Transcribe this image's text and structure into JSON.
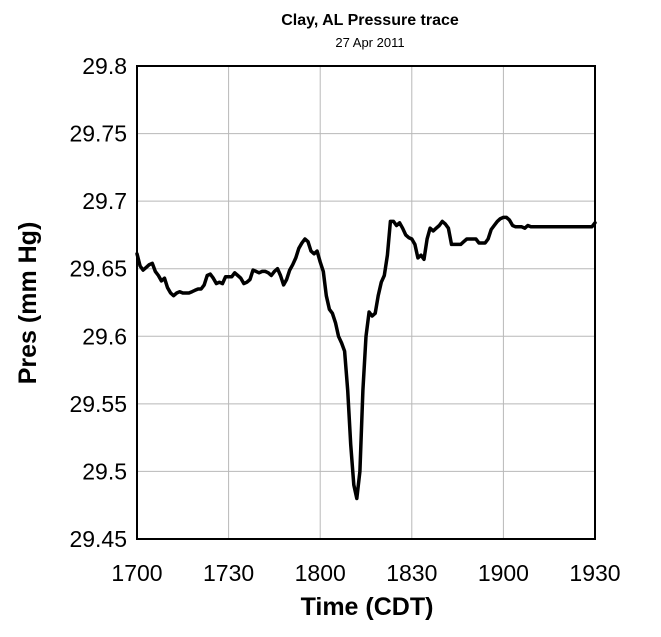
{
  "chart_data": {
    "type": "line",
    "title": "Clay, AL Pressure trace",
    "subtitle": "27 Apr 2011",
    "xlabel": "Time (CDT)",
    "ylabel": "Pres (mm Hg)",
    "x_ticks": [
      "1700",
      "1730",
      "1800",
      "1830",
      "1900",
      "1930"
    ],
    "y_ticks": [
      "29.8",
      "29.75",
      "29.7",
      "29.65",
      "29.6",
      "29.55",
      "29.5",
      "29.45"
    ],
    "xlim": [
      0,
      150
    ],
    "ylim": [
      29.45,
      29.8
    ],
    "grid": true,
    "x_unit_note": "minutes after 1700 CDT",
    "series": [
      {
        "color": "#000000",
        "x": [
          0,
          1,
          2,
          3,
          4,
          5,
          6,
          7,
          8,
          9,
          10,
          11,
          12,
          13,
          14,
          15,
          16,
          17,
          18,
          19,
          20,
          21,
          22,
          23,
          24,
          25,
          26,
          27,
          28,
          29,
          30,
          31,
          32,
          33,
          34,
          35,
          36,
          37,
          38,
          39,
          40,
          41,
          42,
          43,
          44,
          45,
          46,
          47,
          48,
          49,
          50,
          51,
          52,
          53,
          54,
          55,
          56,
          57,
          58,
          59,
          60,
          61,
          62,
          63,
          64,
          65,
          66,
          67,
          68,
          69,
          70,
          71,
          72,
          73,
          74,
          75,
          76,
          77,
          78,
          79,
          80,
          81,
          82,
          83,
          84,
          85,
          86,
          87,
          88,
          89,
          90,
          91,
          92,
          93,
          94,
          95,
          96,
          97,
          98,
          99,
          100,
          101,
          102,
          103,
          104,
          105,
          106,
          107,
          108,
          109,
          110,
          111,
          112,
          113,
          114,
          115,
          116,
          117,
          118,
          119,
          120,
          121,
          122,
          123,
          124,
          125,
          126,
          127,
          128,
          129,
          130,
          131,
          132,
          133,
          134,
          135,
          136,
          137,
          138,
          139,
          140,
          141,
          142,
          143,
          144,
          145,
          146,
          147,
          148,
          149,
          150
        ],
        "y": [
          29.661,
          29.652,
          29.649,
          29.651,
          29.653,
          29.654,
          29.648,
          29.645,
          29.641,
          29.643,
          29.636,
          29.632,
          29.63,
          29.632,
          29.633,
          29.632,
          29.632,
          29.632,
          29.633,
          29.634,
          29.635,
          29.635,
          29.638,
          29.645,
          29.646,
          29.643,
          29.639,
          29.64,
          29.639,
          29.644,
          29.644,
          29.644,
          29.647,
          29.645,
          29.643,
          29.639,
          29.64,
          29.642,
          29.649,
          29.648,
          29.647,
          29.648,
          29.648,
          29.647,
          29.645,
          29.648,
          29.65,
          29.645,
          29.638,
          29.642,
          29.649,
          29.653,
          29.658,
          29.665,
          29.669,
          29.672,
          29.67,
          29.663,
          29.661,
          29.663,
          29.655,
          29.648,
          29.63,
          29.62,
          29.617,
          29.61,
          29.6,
          29.595,
          29.589,
          29.56,
          29.52,
          29.49,
          29.48,
          29.5,
          29.56,
          29.6,
          29.618,
          29.615,
          29.617,
          29.63,
          29.64,
          29.645,
          29.66,
          29.685,
          29.685,
          29.682,
          29.684,
          29.68,
          29.675,
          29.673,
          29.672,
          29.668,
          29.658,
          29.66,
          29.657,
          29.672,
          29.68,
          29.678,
          29.68,
          29.682,
          29.685,
          29.683,
          29.68,
          29.668,
          29.668,
          29.668,
          29.668,
          29.67,
          29.672,
          29.672,
          29.672,
          29.672,
          29.669,
          29.669,
          29.669,
          29.672,
          29.679,
          29.682,
          29.685,
          29.687,
          29.688,
          29.688,
          29.686,
          29.682,
          29.681,
          29.681,
          29.681,
          29.68,
          29.682,
          29.681,
          29.681,
          29.681,
          29.681,
          29.681,
          29.681,
          29.681,
          29.681,
          29.681,
          29.681,
          29.681,
          29.681,
          29.681,
          29.681,
          29.681,
          29.681,
          29.681,
          29.681,
          29.681,
          29.681,
          29.681,
          29.684
        ]
      }
    ]
  }
}
